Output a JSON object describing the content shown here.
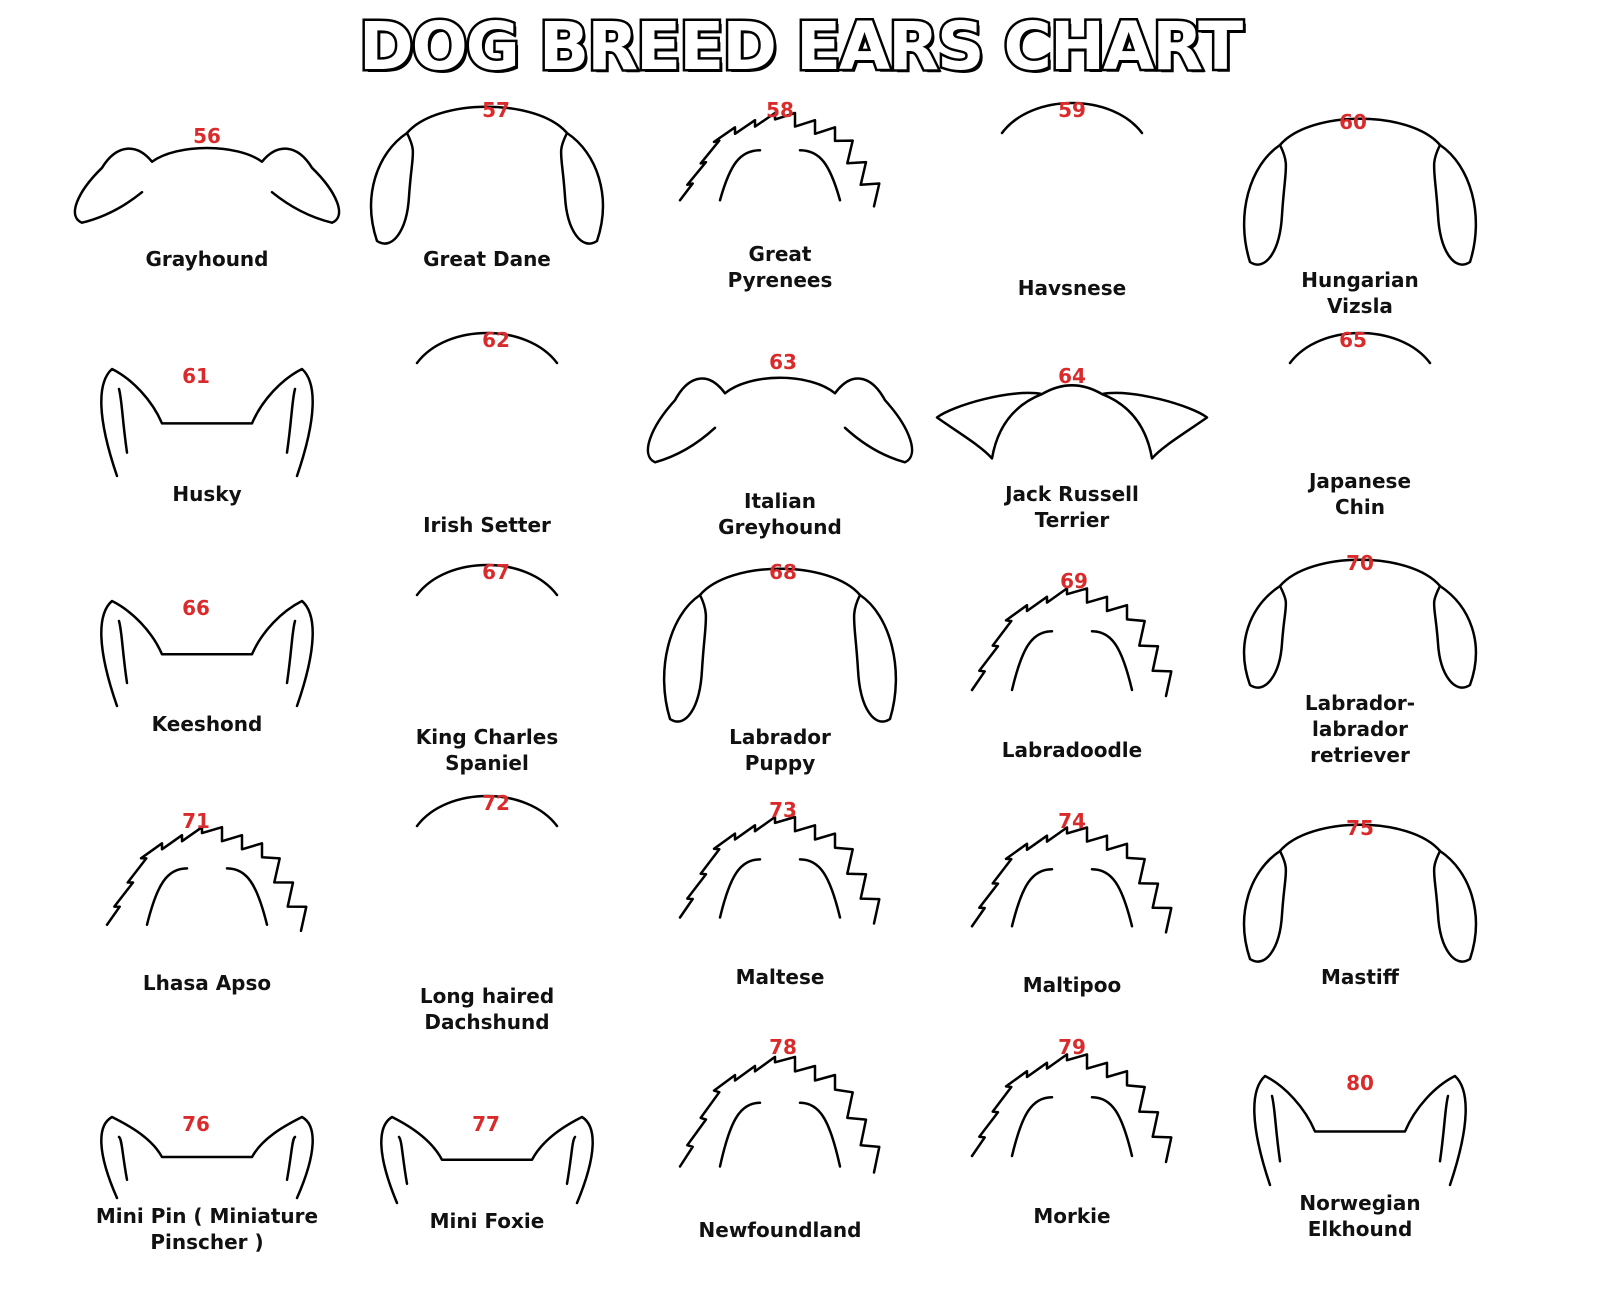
{
  "title": "DOG BREED EARS CHART",
  "colors": {
    "number": "#d92b2b",
    "label": "#111111",
    "outline": "#000000"
  },
  "breeds": [
    {
      "number": "56",
      "label": "Grayhound",
      "ear_icon": "rose-ear"
    },
    {
      "number": "57",
      "label": "Great Dane",
      "ear_icon": "drop-ear"
    },
    {
      "number": "58",
      "label": "Great\nPyrenees",
      "ear_icon": "fluffy-ear"
    },
    {
      "number": "59",
      "label": "Havsnese",
      "ear_icon": "feathered-ear"
    },
    {
      "number": "60",
      "label": "Hungarian\nVizsla",
      "ear_icon": "drop-ear"
    },
    {
      "number": "61",
      "label": "Husky",
      "ear_icon": "erect-ear"
    },
    {
      "number": "62",
      "label": "Irish Setter",
      "ear_icon": "feathered-ear"
    },
    {
      "number": "63",
      "label": "Italian\nGreyhound",
      "ear_icon": "rose-ear"
    },
    {
      "number": "64",
      "label": "Jack Russell\nTerrier",
      "ear_icon": "button-ear"
    },
    {
      "number": "65",
      "label": "Japanese\nChin",
      "ear_icon": "feathered-ear"
    },
    {
      "number": "66",
      "label": "Keeshond",
      "ear_icon": "erect-ear"
    },
    {
      "number": "67",
      "label": "King Charles\nSpaniel",
      "ear_icon": "feathered-ear"
    },
    {
      "number": "68",
      "label": "Labrador\nPuppy",
      "ear_icon": "drop-ear"
    },
    {
      "number": "69",
      "label": "Labradoodle",
      "ear_icon": "fluffy-ear"
    },
    {
      "number": "70",
      "label": "Labrador-\nlabrador\nretriever",
      "ear_icon": "drop-ear"
    },
    {
      "number": "71",
      "label": "Lhasa Apso",
      "ear_icon": "fluffy-ear"
    },
    {
      "number": "72",
      "label": "Long haired\nDachshund",
      "ear_icon": "feathered-ear"
    },
    {
      "number": "73",
      "label": "Maltese",
      "ear_icon": "fluffy-ear"
    },
    {
      "number": "74",
      "label": "Maltipoo",
      "ear_icon": "fluffy-ear"
    },
    {
      "number": "75",
      "label": "Mastiff",
      "ear_icon": "drop-ear"
    },
    {
      "number": "76",
      "label": "Mini Pin ( Miniature\nPinscher )",
      "ear_icon": "erect-ear"
    },
    {
      "number": "77",
      "label": "Mini Foxie",
      "ear_icon": "erect-ear"
    },
    {
      "number": "78",
      "label": "Newfoundland",
      "ear_icon": "fluffy-ear"
    },
    {
      "number": "79",
      "label": "Morkie",
      "ear_icon": "fluffy-ear"
    },
    {
      "number": "80",
      "label": "Norwegian\nElkhound",
      "ear_icon": "erect-ear"
    }
  ]
}
